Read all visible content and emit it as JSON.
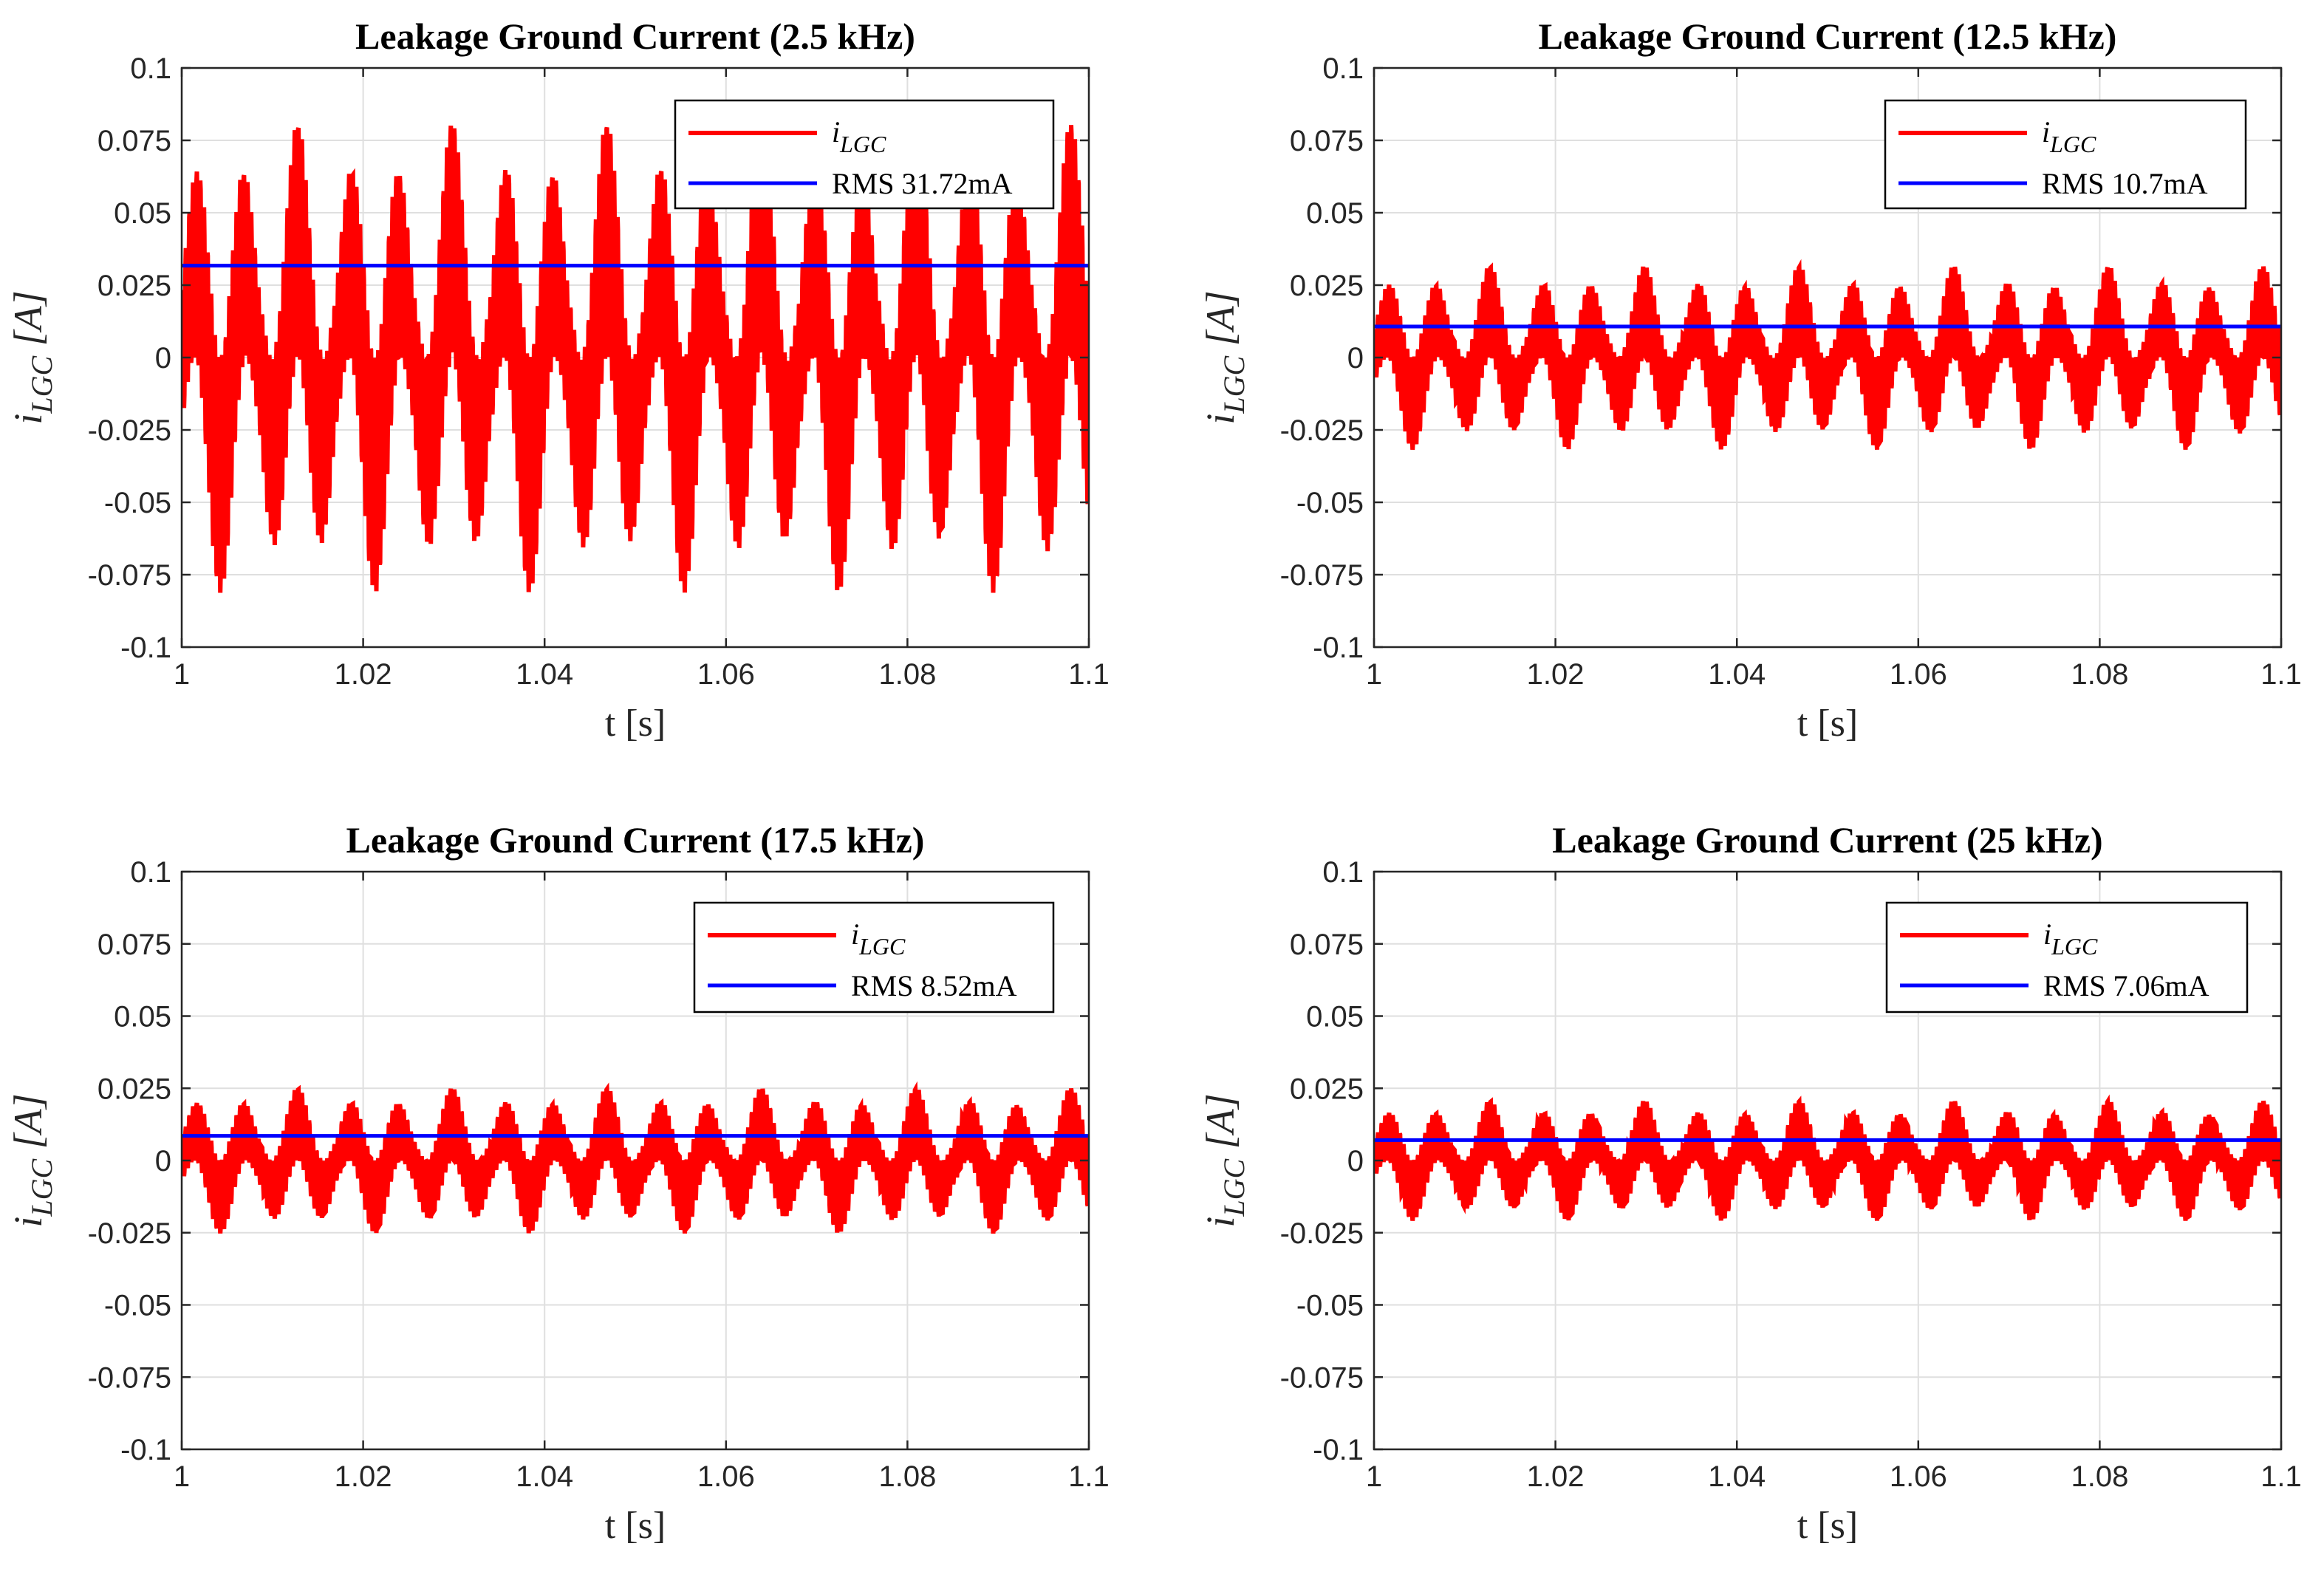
{
  "chart_data": [
    {
      "type": "line",
      "title": "Leakage Ground Current (2.5 kHz)",
      "xlabel": "t [s]",
      "ylabel_main": "i",
      "ylabel_sub": "LGC",
      "ylabel_unit": " [A]",
      "xlim": [
        1,
        1.1
      ],
      "ylim": [
        -0.1,
        0.1
      ],
      "x_ticks": [
        1,
        1.02,
        1.04,
        1.06,
        1.08,
        1.1
      ],
      "x_tick_labels": [
        "1",
        "1.02",
        "1.04",
        "1.06",
        "1.08",
        "1.1"
      ],
      "y_ticks": [
        0.1,
        0.075,
        0.05,
        0.025,
        0,
        -0.025,
        -0.05,
        -0.075,
        -0.1
      ],
      "y_tick_labels": [
        "0.1",
        "0.075",
        "0.05",
        "0.025",
        "0",
        "-0.025",
        "-0.05",
        "-0.075",
        "-0.1"
      ],
      "grid": true,
      "legend_position": "top-right",
      "series": [
        {
          "name": "i",
          "name_sub": "LGC",
          "color": "#ff0000",
          "kind": "waveform",
          "envelope_peak": 0.074,
          "offset": 0.0
        },
        {
          "name": "RMS 31.72mA",
          "color": "#0000ff",
          "kind": "constant",
          "value": 0.03172
        }
      ]
    },
    {
      "type": "line",
      "title": "Leakage Ground Current (12.5 kHz)",
      "xlabel": "t [s]",
      "ylabel_main": "i",
      "ylabel_sub": "LGC",
      "ylabel_unit": " [A]",
      "xlim": [
        1,
        1.1
      ],
      "ylim": [
        -0.1,
        0.1
      ],
      "x_ticks": [
        1,
        1.02,
        1.04,
        1.06,
        1.08,
        1.1
      ],
      "x_tick_labels": [
        "1",
        "1.02",
        "1.04",
        "1.06",
        "1.08",
        "1.1"
      ],
      "y_ticks": [
        0.1,
        0.075,
        0.05,
        0.025,
        0,
        -0.025,
        -0.05,
        -0.075,
        -0.1
      ],
      "y_tick_labels": [
        "0.1",
        "0.075",
        "0.05",
        "0.025",
        "0",
        "-0.025",
        "-0.05",
        "-0.075",
        "-0.1"
      ],
      "grid": true,
      "legend_position": "top-right",
      "series": [
        {
          "name": "i",
          "name_sub": "LGC",
          "color": "#ff0000",
          "kind": "waveform",
          "envelope_peak": 0.029,
          "offset": 0.0
        },
        {
          "name": "RMS 10.7mA",
          "color": "#0000ff",
          "kind": "constant",
          "value": 0.0107
        }
      ]
    },
    {
      "type": "line",
      "title": "Leakage Ground Current (17.5 kHz)",
      "xlabel": "t [s]",
      "ylabel_main": "i",
      "ylabel_sub": "LGC",
      "ylabel_unit": " [A]",
      "xlim": [
        1,
        1.1
      ],
      "ylim": [
        -0.1,
        0.1
      ],
      "x_ticks": [
        1,
        1.02,
        1.04,
        1.06,
        1.08,
        1.1
      ],
      "x_tick_labels": [
        "1",
        "1.02",
        "1.04",
        "1.06",
        "1.08",
        "1.1"
      ],
      "y_ticks": [
        0.1,
        0.075,
        0.05,
        0.025,
        0,
        -0.025,
        -0.05,
        -0.075,
        -0.1
      ],
      "y_tick_labels": [
        "0.1",
        "0.075",
        "0.05",
        "0.025",
        "0",
        "-0.025",
        "-0.05",
        "-0.075",
        "-0.1"
      ],
      "grid": true,
      "legend_position": "top-right",
      "series": [
        {
          "name": "i",
          "name_sub": "LGC",
          "color": "#ff0000",
          "kind": "waveform",
          "envelope_peak": 0.023,
          "offset": 0.0
        },
        {
          "name": "RMS 8.52mA",
          "color": "#0000ff",
          "kind": "constant",
          "value": 0.00852
        }
      ]
    },
    {
      "type": "line",
      "title": "Leakage Ground Current (25 kHz)",
      "xlabel": "t [s]",
      "ylabel_main": "i",
      "ylabel_sub": "LGC",
      "ylabel_unit": " [A]",
      "xlim": [
        1,
        1.1
      ],
      "ylim": [
        -0.1,
        0.1
      ],
      "x_ticks": [
        1,
        1.02,
        1.04,
        1.06,
        1.08,
        1.1
      ],
      "x_tick_labels": [
        "1",
        "1.02",
        "1.04",
        "1.06",
        "1.08",
        "1.1"
      ],
      "y_ticks": [
        0.1,
        0.075,
        0.05,
        0.025,
        0,
        -0.025,
        -0.05,
        -0.075,
        -0.1
      ],
      "y_tick_labels": [
        "0.1",
        "0.075",
        "0.05",
        "0.025",
        "0",
        "-0.025",
        "-0.05",
        "-0.075",
        "-0.1"
      ],
      "grid": true,
      "legend_position": "top-right",
      "series": [
        {
          "name": "i",
          "name_sub": "LGC",
          "color": "#ff0000",
          "kind": "waveform",
          "envelope_peak": 0.019,
          "offset": 0.0
        },
        {
          "name": "RMS 7.06mA",
          "color": "#0000ff",
          "kind": "constant",
          "value": 0.00706
        }
      ]
    }
  ]
}
